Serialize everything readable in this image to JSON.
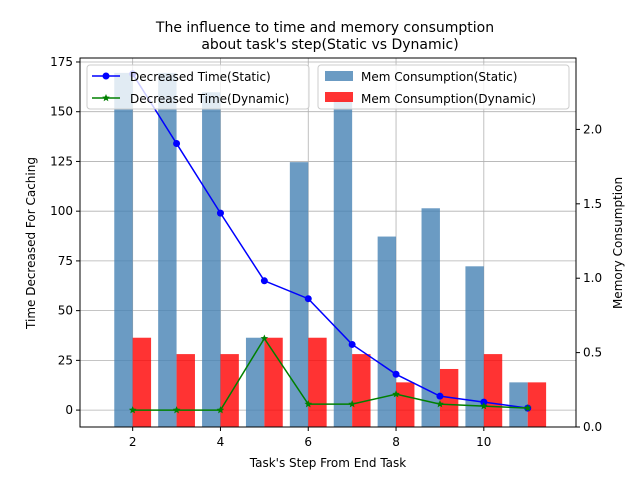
{
  "chart_data": {
    "type": "bar+line",
    "title_line1": "The influence to time and memory consumption",
    "title_line2": "about task's step(Static vs Dynamic)",
    "xlabel": "Task's Step From End Task",
    "ylabel_left": "Time Decreased For Caching",
    "ylabel_right": "Memory Consumption",
    "x": [
      2,
      3,
      4,
      5,
      6,
      7,
      8,
      9,
      10,
      11
    ],
    "xlim": [
      0.8,
      12.1
    ],
    "ylim_left": [
      -8.5,
      177
    ],
    "ylim_right": [
      0,
      2.48
    ],
    "xticks": [
      2,
      4,
      6,
      8,
      10
    ],
    "yticks_left": [
      0,
      25,
      50,
      75,
      100,
      125,
      150,
      175
    ],
    "yticks_right": [
      "0.0",
      "0.5",
      "1.0",
      "1.5",
      "2.0"
    ],
    "grid": true,
    "legend_left_position": "upper-left",
    "legend_right_position": "upper-right",
    "line_series": [
      {
        "name": "Decreased Time(Static)",
        "color": "#0000ff",
        "marker": "circle",
        "values": [
          169,
          134,
          99,
          65,
          56,
          33,
          18,
          7,
          4,
          1
        ]
      },
      {
        "name": "Decreased Time(Dynamic)",
        "color": "#008000",
        "marker": "star",
        "values": [
          0,
          0,
          0,
          36,
          3,
          3,
          8,
          3,
          2,
          1
        ]
      }
    ],
    "bar_series": [
      {
        "name": "Mem Consumption(Static)",
        "color": "#4682b4",
        "values": [
          2.38,
          2.38,
          2.25,
          0.6,
          1.78,
          2.2,
          1.28,
          1.47,
          1.08,
          0.3
        ]
      },
      {
        "name": "Mem Consumption(Dynamic)",
        "color": "#ff0000",
        "values": [
          0.6,
          0.49,
          0.49,
          0.6,
          0.6,
          0.49,
          0.3,
          0.39,
          0.49,
          0.3
        ]
      }
    ]
  }
}
